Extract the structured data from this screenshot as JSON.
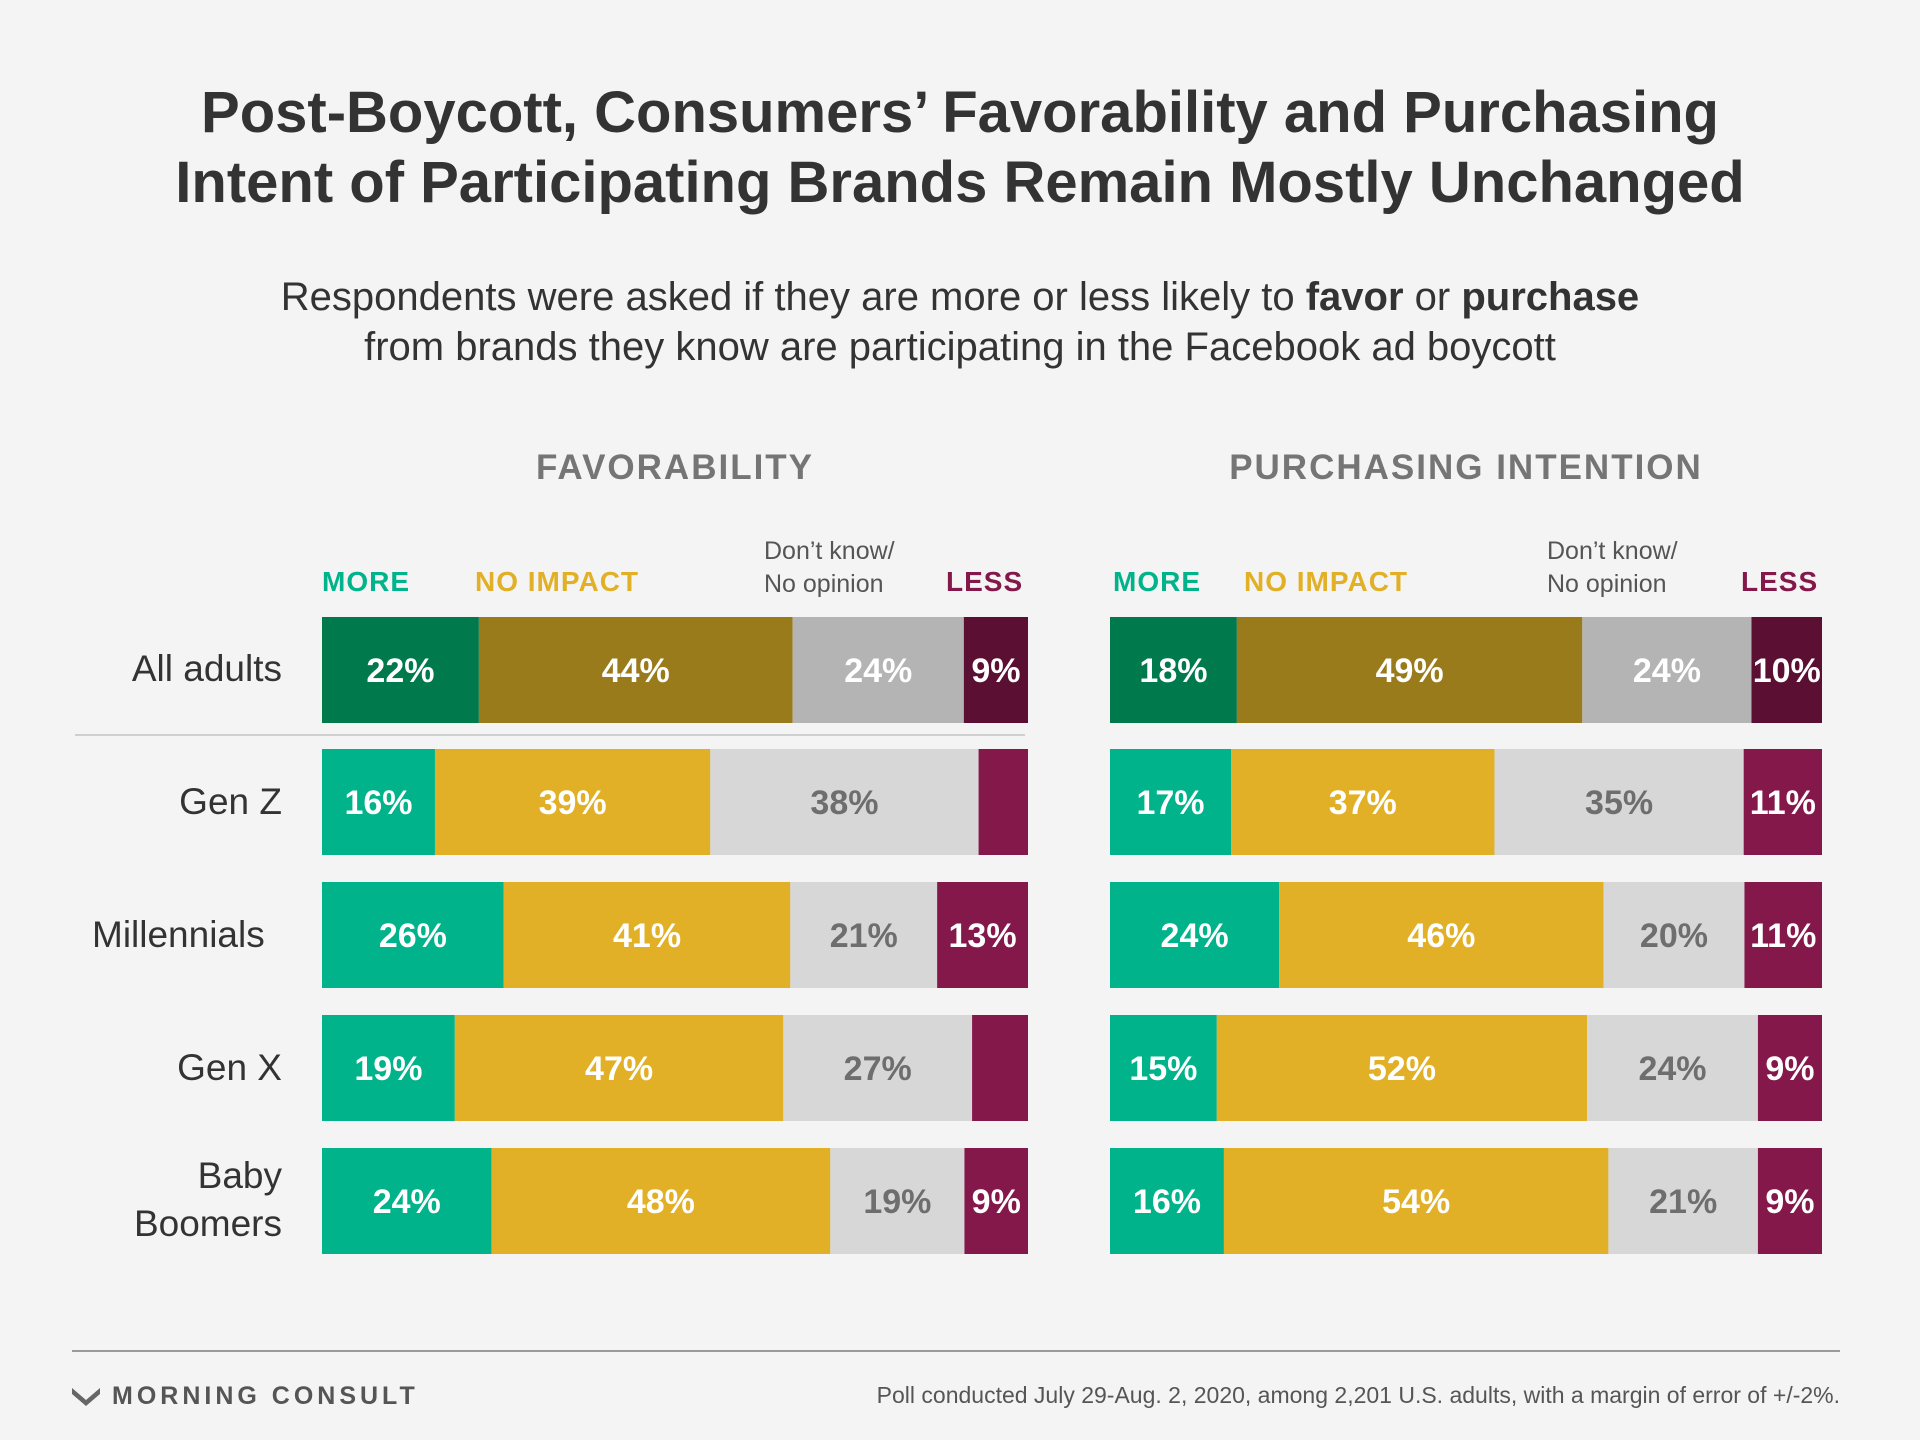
{
  "title": {
    "line1": "Post-Boycott, Consumers’ Favorability and Purchasing",
    "line2": "Intent of Participating Brands Remain Mostly Unchanged"
  },
  "subtitle": {
    "line1_pre": "Respondents were asked if they are more or less likely to ",
    "line1_favor": "favor",
    "line1_mid": " or ",
    "line1_purchase": "purchase",
    "line2": "from brands they know are participating in the Facebook ad boycott"
  },
  "legend": {
    "more": "MORE",
    "no_impact": "NO IMPACT",
    "dont_know_line1": "Don’t know/",
    "dont_know_line2": "No opinion",
    "less": "LESS"
  },
  "rows": {
    "all_adults": "All adults",
    "gen_z": "Gen Z",
    "millennials": "Millennials",
    "gen_x": "Gen X",
    "baby": "Baby",
    "boomers": "Boomers"
  },
  "colors": {
    "more": "#00b38a",
    "more_dark": "#007a4d",
    "no_impact": "#e1b026",
    "no_impact_dark": "#9a7b1b",
    "dont_know": "#d7d7d7",
    "dont_know_dark": "#b4b4b4",
    "less": "#84184a",
    "less_dark": "#5b0f32",
    "more_text": "#00b38a",
    "no_impact_text": "#e1b026",
    "less_text": "#84184a"
  },
  "chart_data": [
    {
      "type": "bar",
      "orientation": "horizontal",
      "stacked": true,
      "title": "FAVORABILITY",
      "categories": [
        "All adults",
        "Gen Z",
        "Millennials",
        "Gen X",
        "Baby Boomers"
      ],
      "series": [
        {
          "name": "MORE",
          "values": [
            22,
            16,
            26,
            19,
            24
          ],
          "labels": [
            "22%",
            "16%",
            "26%",
            "19%",
            "24%"
          ]
        },
        {
          "name": "NO IMPACT",
          "values": [
            44,
            39,
            41,
            47,
            48
          ],
          "labels": [
            "44%",
            "39%",
            "41%",
            "47%",
            "48%"
          ]
        },
        {
          "name": "Don’t know/ No opinion",
          "values": [
            24,
            38,
            21,
            27,
            19
          ],
          "labels": [
            "24%",
            "38%",
            "21%",
            "27%",
            "19%"
          ]
        },
        {
          "name": "LESS",
          "values": [
            9,
            7,
            13,
            8,
            9
          ],
          "labels": [
            "9%",
            "",
            "13%",
            "",
            "9%"
          ]
        }
      ]
    },
    {
      "type": "bar",
      "orientation": "horizontal",
      "stacked": true,
      "title": "PURCHASING INTENTION",
      "categories": [
        "All adults",
        "Gen Z",
        "Millennials",
        "Gen X",
        "Baby Boomers"
      ],
      "series": [
        {
          "name": "MORE",
          "values": [
            18,
            17,
            24,
            15,
            16
          ],
          "labels": [
            "18%",
            "17%",
            "24%",
            "15%",
            "16%"
          ]
        },
        {
          "name": "NO IMPACT",
          "values": [
            49,
            37,
            46,
            52,
            54
          ],
          "labels": [
            "49%",
            "37%",
            "46%",
            "52%",
            "54%"
          ]
        },
        {
          "name": "Don’t know/ No opinion",
          "values": [
            24,
            35,
            20,
            24,
            21
          ],
          "labels": [
            "24%",
            "35%",
            "20%",
            "24%",
            "21%"
          ]
        },
        {
          "name": "LESS",
          "values": [
            10,
            11,
            11,
            9,
            9
          ],
          "labels": [
            "10%",
            "11%",
            "11%",
            "9%",
            "9%"
          ]
        }
      ]
    }
  ],
  "footer": {
    "brand": "MORNING CONSULT",
    "source": "Poll conducted July 29-Aug. 2, 2020, among 2,201 U.S. adults, with a margin of error of +/-2%."
  }
}
